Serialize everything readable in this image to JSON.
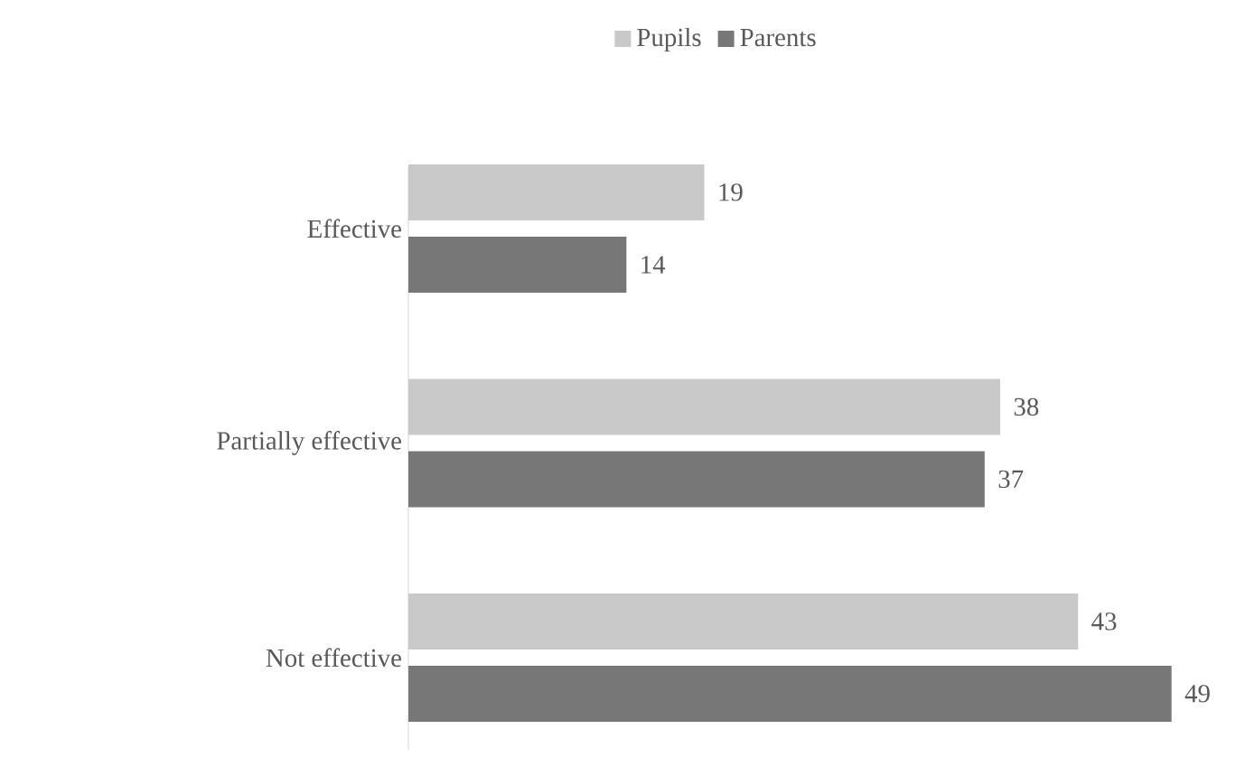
{
  "chart_data": {
    "type": "bar",
    "orientation": "horizontal",
    "categories": [
      "Effective",
      "Partially effective",
      "Not effective"
    ],
    "series": [
      {
        "name": "Pupils",
        "color": "#c9c9c9",
        "values": [
          19,
          38,
          43
        ]
      },
      {
        "name": "Parents",
        "color": "#777777",
        "values": [
          14,
          37,
          49
        ]
      }
    ],
    "data_labels": true,
    "legend": "top"
  }
}
